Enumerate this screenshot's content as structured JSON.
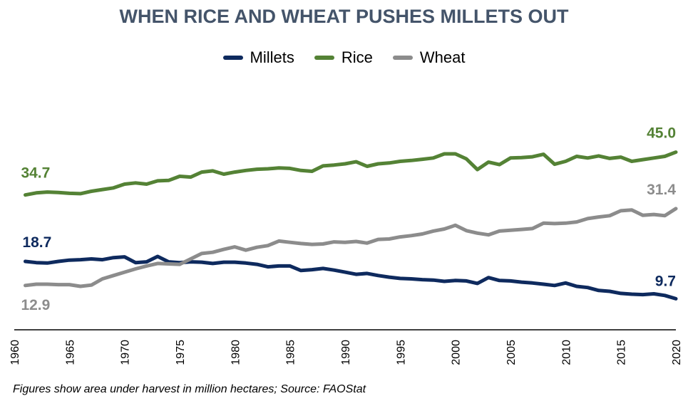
{
  "chart_data": {
    "type": "line",
    "title": "WHEN RICE AND WHEAT PUSHES MILLETS OUT",
    "footnote": "Figures show area under harvest in million hectares; Source: FAOStat",
    "xlim": [
      1960,
      2020
    ],
    "ylim": [
      0,
      50
    ],
    "grid": false,
    "legend": "top-center",
    "x_tick_labels": [
      "1960",
      "1965",
      "1970",
      "1975",
      "1980",
      "1985",
      "1990",
      "1995",
      "2000",
      "2005",
      "2010",
      "2015",
      "2020"
    ],
    "x": [
      1961,
      1962,
      1963,
      1964,
      1965,
      1966,
      1967,
      1968,
      1969,
      1970,
      1971,
      1972,
      1973,
      1974,
      1975,
      1976,
      1977,
      1978,
      1979,
      1980,
      1981,
      1982,
      1983,
      1984,
      1985,
      1986,
      1987,
      1988,
      1989,
      1990,
      1991,
      1992,
      1993,
      1994,
      1995,
      1996,
      1997,
      1998,
      1999,
      2000,
      2001,
      2002,
      2003,
      2004,
      2005,
      2006,
      2007,
      2008,
      2009,
      2010,
      2011,
      2012,
      2013,
      2014,
      2015,
      2016,
      2017,
      2018,
      2019,
      2020
    ],
    "series": [
      {
        "name": "Millets",
        "color": "#0e2a5e",
        "values": [
          18.7,
          18.4,
          18.3,
          18.7,
          19.0,
          19.1,
          19.3,
          19.1,
          19.6,
          19.8,
          18.4,
          18.6,
          19.9,
          18.6,
          18.4,
          18.6,
          18.5,
          18.2,
          18.5,
          18.5,
          18.3,
          18.0,
          17.4,
          17.6,
          17.6,
          16.5,
          16.7,
          17.0,
          16.6,
          16.1,
          15.6,
          15.8,
          15.3,
          14.9,
          14.6,
          14.5,
          14.3,
          14.2,
          13.9,
          14.1,
          14.0,
          13.4,
          14.8,
          14.1,
          14.0,
          13.7,
          13.5,
          13.2,
          12.9,
          13.5,
          12.7,
          12.4,
          11.7,
          11.5,
          11.0,
          10.8,
          10.7,
          10.9,
          10.5,
          9.7
        ],
        "labels": [
          {
            "x": 1961,
            "text": "18.7"
          },
          {
            "x": 2020,
            "text": "9.7"
          }
        ]
      },
      {
        "name": "Rice",
        "color": "#548235",
        "values": [
          34.7,
          35.2,
          35.4,
          35.3,
          35.1,
          35.0,
          35.6,
          36.0,
          36.4,
          37.3,
          37.6,
          37.3,
          38.1,
          38.2,
          39.2,
          39.0,
          40.2,
          40.5,
          39.7,
          40.2,
          40.6,
          40.9,
          41.0,
          41.2,
          41.1,
          40.6,
          40.4,
          41.7,
          41.9,
          42.2,
          42.7,
          41.6,
          42.2,
          42.4,
          42.8,
          43.0,
          43.3,
          43.6,
          44.6,
          44.6,
          43.4,
          40.8,
          42.6,
          42.0,
          43.6,
          43.7,
          43.9,
          44.5,
          42.1,
          42.8,
          44.0,
          43.6,
          44.1,
          43.5,
          43.8,
          42.8,
          43.2,
          43.6,
          44.0,
          45.0
        ],
        "labels": [
          {
            "x": 1961,
            "text": "34.7"
          },
          {
            "x": 2020,
            "text": "45.0"
          }
        ]
      },
      {
        "name": "Wheat",
        "color": "#8c8c8c",
        "values": [
          12.9,
          13.2,
          13.2,
          13.1,
          13.1,
          12.7,
          13.0,
          14.5,
          15.3,
          16.1,
          16.9,
          17.6,
          18.2,
          18.1,
          18.0,
          19.3,
          20.6,
          20.9,
          21.6,
          22.2,
          21.4,
          22.1,
          22.5,
          23.6,
          23.3,
          23.0,
          22.8,
          22.9,
          23.4,
          23.3,
          23.5,
          23.1,
          24.0,
          24.1,
          24.6,
          24.9,
          25.3,
          26.0,
          26.5,
          27.4,
          26.1,
          25.5,
          25.1,
          26.0,
          26.2,
          26.4,
          26.6,
          27.9,
          27.8,
          27.9,
          28.2,
          29.0,
          29.4,
          29.7,
          30.9,
          31.1,
          29.8,
          30.0,
          29.7,
          31.4
        ],
        "labels": [
          {
            "x": 1961,
            "text": "12.9"
          },
          {
            "x": 2020,
            "text": "31.4"
          }
        ]
      }
    ]
  }
}
